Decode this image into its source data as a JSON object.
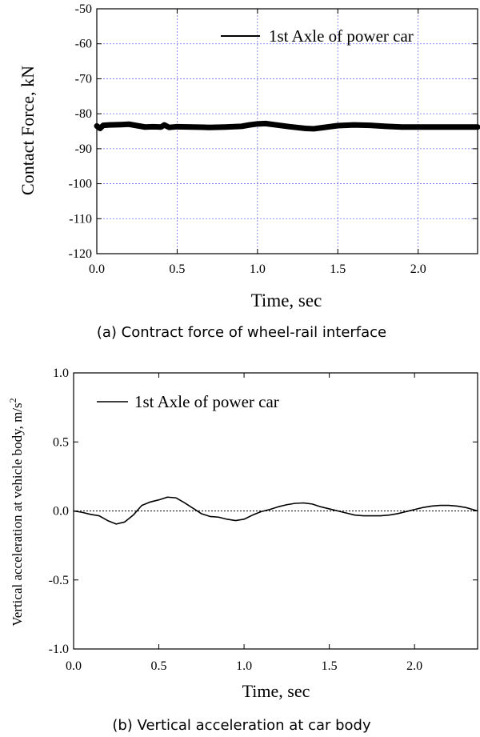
{
  "chart_data": [
    {
      "type": "line",
      "title": "",
      "caption": "(a) Contract force of wheel-rail interface",
      "xlabel": "Time, sec",
      "ylabel": "Contact Force, kN",
      "xlim": [
        0,
        2.37
      ],
      "ylim": [
        -120,
        -50
      ],
      "xticks": [
        0.0,
        0.5,
        1.0,
        1.5,
        2.0
      ],
      "xtick_labels": [
        "0.0",
        "0.5",
        "1.0",
        "1.5",
        "2.0"
      ],
      "yticks": [
        -120,
        -110,
        -100,
        -90,
        -80,
        -70,
        -60,
        -50
      ],
      "ytick_labels": [
        "-120",
        "-110",
        "-100",
        "-90",
        "-80",
        "-70",
        "-60",
        "-50"
      ],
      "grid": true,
      "legend_position": "top-right",
      "series": [
        {
          "name": "1st Axle of power car",
          "color": "#000000",
          "x": [
            0.0,
            0.02,
            0.04,
            0.08,
            0.15,
            0.2,
            0.25,
            0.3,
            0.35,
            0.4,
            0.42,
            0.45,
            0.5,
            0.6,
            0.7,
            0.8,
            0.9,
            0.95,
            1.0,
            1.05,
            1.1,
            1.2,
            1.3,
            1.35,
            1.4,
            1.5,
            1.6,
            1.7,
            1.8,
            1.9,
            2.0,
            2.1,
            2.2,
            2.3,
            2.37
          ],
          "y": [
            -83.5,
            -84.2,
            -83.3,
            -83.2,
            -83.1,
            -83.0,
            -83.4,
            -83.8,
            -83.7,
            -83.8,
            -83.2,
            -83.9,
            -83.7,
            -83.8,
            -83.9,
            -83.8,
            -83.6,
            -83.2,
            -82.9,
            -82.8,
            -83.1,
            -83.7,
            -84.2,
            -84.3,
            -84.0,
            -83.4,
            -83.2,
            -83.3,
            -83.6,
            -83.8,
            -83.8,
            -83.8,
            -83.8,
            -83.8,
            -83.8
          ]
        }
      ]
    },
    {
      "type": "line",
      "title": "",
      "caption": "(b) Vertical acceleration at car body",
      "xlabel": "Time, sec",
      "ylabel": "Vertical acceleration at vehicle body, m/s",
      "ylabel_sup": "2",
      "xlim": [
        0,
        2.37
      ],
      "ylim": [
        -1.0,
        1.0
      ],
      "xticks": [
        0.0,
        0.5,
        1.0,
        1.5,
        2.0
      ],
      "xtick_labels": [
        "0.0",
        "0.5",
        "1.0",
        "1.5",
        "2.0"
      ],
      "yticks": [
        -1.0,
        -0.5,
        0.0,
        0.5,
        1.0
      ],
      "ytick_labels": [
        "-1.0",
        "-0.5",
        "0.0",
        "0.5",
        "1.0"
      ],
      "grid": false,
      "reference_line": 0.0,
      "legend_position": "top-left",
      "series": [
        {
          "name": "1st Axle of power car",
          "color": "#000000",
          "x": [
            0.0,
            0.05,
            0.1,
            0.15,
            0.2,
            0.25,
            0.3,
            0.35,
            0.4,
            0.45,
            0.5,
            0.55,
            0.6,
            0.65,
            0.7,
            0.75,
            0.8,
            0.85,
            0.9,
            0.95,
            1.0,
            1.05,
            1.1,
            1.15,
            1.2,
            1.25,
            1.3,
            1.35,
            1.4,
            1.45,
            1.5,
            1.55,
            1.6,
            1.65,
            1.7,
            1.75,
            1.8,
            1.85,
            1.9,
            1.95,
            2.0,
            2.05,
            2.1,
            2.15,
            2.2,
            2.25,
            2.3,
            2.37
          ],
          "y": [
            0.0,
            -0.01,
            -0.025,
            -0.035,
            -0.07,
            -0.095,
            -0.08,
            -0.03,
            0.04,
            0.065,
            0.08,
            0.1,
            0.095,
            0.06,
            0.02,
            -0.02,
            -0.04,
            -0.045,
            -0.06,
            -0.07,
            -0.06,
            -0.03,
            -0.005,
            0.01,
            0.03,
            0.045,
            0.055,
            0.058,
            0.05,
            0.03,
            0.015,
            0.0,
            -0.015,
            -0.03,
            -0.035,
            -0.035,
            -0.035,
            -0.03,
            -0.02,
            -0.005,
            0.01,
            0.025,
            0.035,
            0.04,
            0.04,
            0.035,
            0.025,
            0.0
          ]
        }
      ]
    }
  ]
}
